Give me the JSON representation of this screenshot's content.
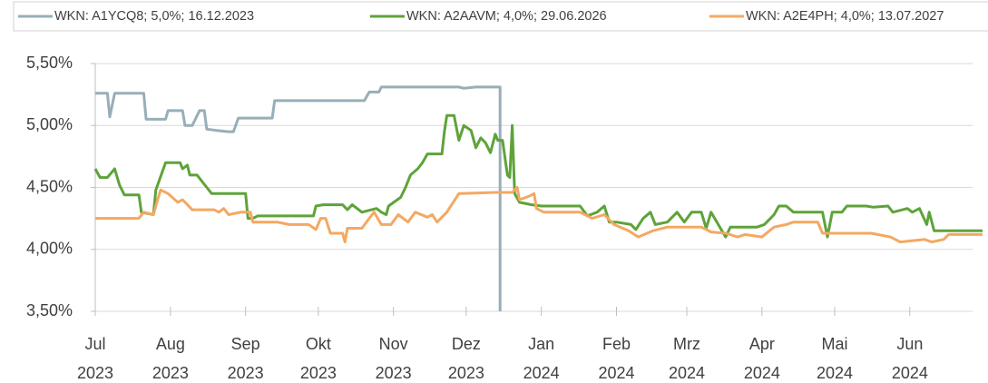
{
  "chart_data": {
    "type": "line",
    "series": [
      {
        "name": "WKN: A1YCQ8; 5,0%; 16.12.2023",
        "color": "#98aeb8",
        "x": [
          0,
          5,
          6,
          8,
          20,
          21,
          29,
          30,
          36,
          37,
          40,
          43,
          45,
          46,
          50,
          55,
          57,
          59,
          73,
          74,
          111,
          113,
          117,
          118,
          150,
          152,
          157,
          167,
          167
        ],
        "values": [
          5.26,
          5.26,
          5.07,
          5.26,
          5.26,
          5.05,
          5.05,
          5.12,
          5.12,
          5.0,
          5.0,
          5.12,
          5.12,
          4.97,
          4.96,
          4.95,
          4.95,
          5.06,
          5.06,
          5.2,
          5.2,
          5.27,
          5.27,
          5.31,
          5.31,
          5.3,
          5.31,
          5.31,
          3.5
        ]
      },
      {
        "name": "WKN: A2AAVM; 4,0%; 29.06.2026",
        "color": "#5ea33a",
        "x": [
          0,
          2,
          5,
          8,
          10,
          12,
          18,
          19,
          24,
          25,
          29,
          35,
          36,
          38,
          39,
          42,
          46,
          48,
          62,
          63,
          65,
          67,
          90,
          91,
          94,
          102,
          104,
          106,
          110,
          116,
          118,
          120,
          121,
          126,
          128,
          130,
          133,
          135,
          137,
          143,
          144,
          145,
          148,
          150,
          152,
          155,
          157,
          159,
          161,
          163,
          165,
          166,
          168,
          170,
          171,
          172,
          173,
          175,
          180,
          184,
          200,
          203,
          207,
          210,
          212,
          215,
          221,
          223,
          226,
          229,
          231,
          236,
          240,
          243,
          246,
          250,
          252,
          254,
          257,
          260,
          262,
          273,
          276,
          280,
          282,
          285,
          288,
          300,
          302,
          304,
          308,
          310,
          318,
          321,
          327,
          329,
          335,
          337,
          340,
          343,
          344,
          346,
          360,
          366
        ],
        "values": [
          4.65,
          4.58,
          4.58,
          4.65,
          4.52,
          4.44,
          4.44,
          4.3,
          4.28,
          4.48,
          4.7,
          4.7,
          4.65,
          4.68,
          4.6,
          4.6,
          4.5,
          4.45,
          4.45,
          4.25,
          4.25,
          4.27,
          4.27,
          4.35,
          4.36,
          4.36,
          4.32,
          4.36,
          4.3,
          4.33,
          4.3,
          4.28,
          4.35,
          4.42,
          4.5,
          4.6,
          4.65,
          4.7,
          4.77,
          4.77,
          4.95,
          5.08,
          5.08,
          4.88,
          5.0,
          4.96,
          4.82,
          4.9,
          4.86,
          4.78,
          4.93,
          4.88,
          4.88,
          4.6,
          4.58,
          5.0,
          4.45,
          4.38,
          4.36,
          4.35,
          4.35,
          4.27,
          4.3,
          4.35,
          4.22,
          4.22,
          4.2,
          4.16,
          4.25,
          4.3,
          4.2,
          4.22,
          4.3,
          4.22,
          4.3,
          4.3,
          4.17,
          4.3,
          4.2,
          4.1,
          4.18,
          4.18,
          4.2,
          4.28,
          4.35,
          4.35,
          4.3,
          4.3,
          4.1,
          4.3,
          4.3,
          4.35,
          4.35,
          4.34,
          4.35,
          4.3,
          4.33,
          4.3,
          4.33,
          4.2,
          4.3,
          4.15,
          4.15,
          4.15
        ]
      },
      {
        "name": "WKN: A2E4PH; 4,0%; 13.07.2027",
        "color": "#f4a862",
        "x": [
          0,
          18,
          20,
          24,
          26,
          27,
          30,
          34,
          36,
          40,
          49,
          51,
          53,
          55,
          60,
          64,
          65,
          75,
          80,
          88,
          91,
          93,
          95,
          97,
          102,
          103,
          104,
          110,
          113,
          115,
          118,
          122,
          125,
          129,
          132,
          137,
          139,
          141,
          145,
          150,
          165,
          172,
          174,
          175,
          179,
          181,
          182,
          185,
          200,
          205,
          210,
          214,
          220,
          224,
          230,
          236,
          250,
          254,
          260,
          265,
          268,
          275,
          280,
          285,
          288,
          298,
          300,
          320,
          328,
          332,
          342,
          345,
          350,
          352,
          366
        ],
        "values": [
          4.25,
          4.25,
          4.3,
          4.28,
          4.42,
          4.48,
          4.45,
          4.38,
          4.4,
          4.32,
          4.32,
          4.3,
          4.33,
          4.28,
          4.3,
          4.3,
          4.22,
          4.22,
          4.2,
          4.2,
          4.16,
          4.25,
          4.25,
          4.13,
          4.13,
          4.06,
          4.17,
          4.17,
          4.25,
          4.3,
          4.2,
          4.2,
          4.28,
          4.22,
          4.3,
          4.26,
          4.28,
          4.22,
          4.3,
          4.45,
          4.46,
          4.46,
          4.5,
          4.4,
          4.43,
          4.45,
          4.33,
          4.3,
          4.3,
          4.25,
          4.28,
          4.2,
          4.15,
          4.1,
          4.15,
          4.18,
          4.18,
          4.14,
          4.13,
          4.1,
          4.12,
          4.1,
          4.18,
          4.2,
          4.22,
          4.22,
          4.13,
          4.13,
          4.1,
          4.06,
          4.08,
          4.06,
          4.08,
          4.12,
          4.12
        ]
      }
    ],
    "xlim": [
      0,
      366
    ],
    "xticks": [
      {
        "value": 0,
        "label": "Jul 2023"
      },
      {
        "value": 31,
        "label": "Aug 2023"
      },
      {
        "value": 62,
        "label": "Sep 2023"
      },
      {
        "value": 92,
        "label": "Okt 2023"
      },
      {
        "value": 123,
        "label": "Nov 2023"
      },
      {
        "value": 153,
        "label": "Dez 2023"
      },
      {
        "value": 184,
        "label": "Jan 2024"
      },
      {
        "value": 215,
        "label": "Feb 2024"
      },
      {
        "value": 244,
        "label": "Mrz 2024"
      },
      {
        "value": 275,
        "label": "Apr 2024"
      },
      {
        "value": 305,
        "label": "Mai 2024"
      },
      {
        "value": 336,
        "label": "Jun 2024"
      }
    ],
    "ylim": [
      3.5,
      5.5
    ],
    "yticks": [
      {
        "value": 3.5,
        "label": "3,50%"
      },
      {
        "value": 4.0,
        "label": "4,00%"
      },
      {
        "value": 4.5,
        "label": "4,50%"
      },
      {
        "value": 5.0,
        "label": "5,00%"
      },
      {
        "value": 5.5,
        "label": "5,50%"
      }
    ],
    "grid": true,
    "legend": "top"
  }
}
